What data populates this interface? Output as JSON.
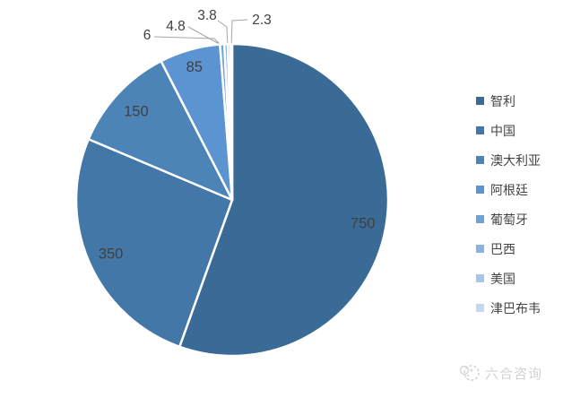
{
  "chart_data": {
    "type": "pie",
    "title": "",
    "categories": [
      "智利",
      "中国",
      "澳大利亚",
      "阿根廷",
      "葡萄牙",
      "巴西",
      "美国",
      "津巴布韦"
    ],
    "values": [
      750,
      350,
      150,
      85,
      6,
      4.8,
      3.8,
      2.3
    ],
    "data_labels": [
      "750",
      "350",
      "150",
      "85",
      "6",
      "4.8",
      "3.8",
      "2.3"
    ],
    "colors": [
      "#3A6A96",
      "#4377A8",
      "#4C84B8",
      "#5B94D0",
      "#6EA2D8",
      "#8AB4DF",
      "#A7C6E7",
      "#C4D9EF"
    ],
    "total": 1351.9,
    "start_angle_deg": 0,
    "direction": "clockwise",
    "legend_position": "right",
    "grid": false,
    "label_color": "#404040",
    "leader_line_color": "#A6A6A6",
    "slice_border_color": "#FFFFFF"
  },
  "legend": {
    "items": [
      {
        "label": "智利",
        "color": "#3A6A96"
      },
      {
        "label": "中国",
        "color": "#4377A8"
      },
      {
        "label": "澳大利亚",
        "color": "#4C84B8"
      },
      {
        "label": "阿根廷",
        "color": "#5B94D0"
      },
      {
        "label": "葡萄牙",
        "color": "#6EA2D8"
      },
      {
        "label": "巴西",
        "color": "#8AB4DF"
      },
      {
        "label": "美国",
        "color": "#A7C6E7"
      },
      {
        "label": "津巴布韦",
        "color": "#C4D9EF"
      }
    ]
  },
  "watermark": {
    "text": "六合咨询",
    "color": "#D2D2D2"
  }
}
